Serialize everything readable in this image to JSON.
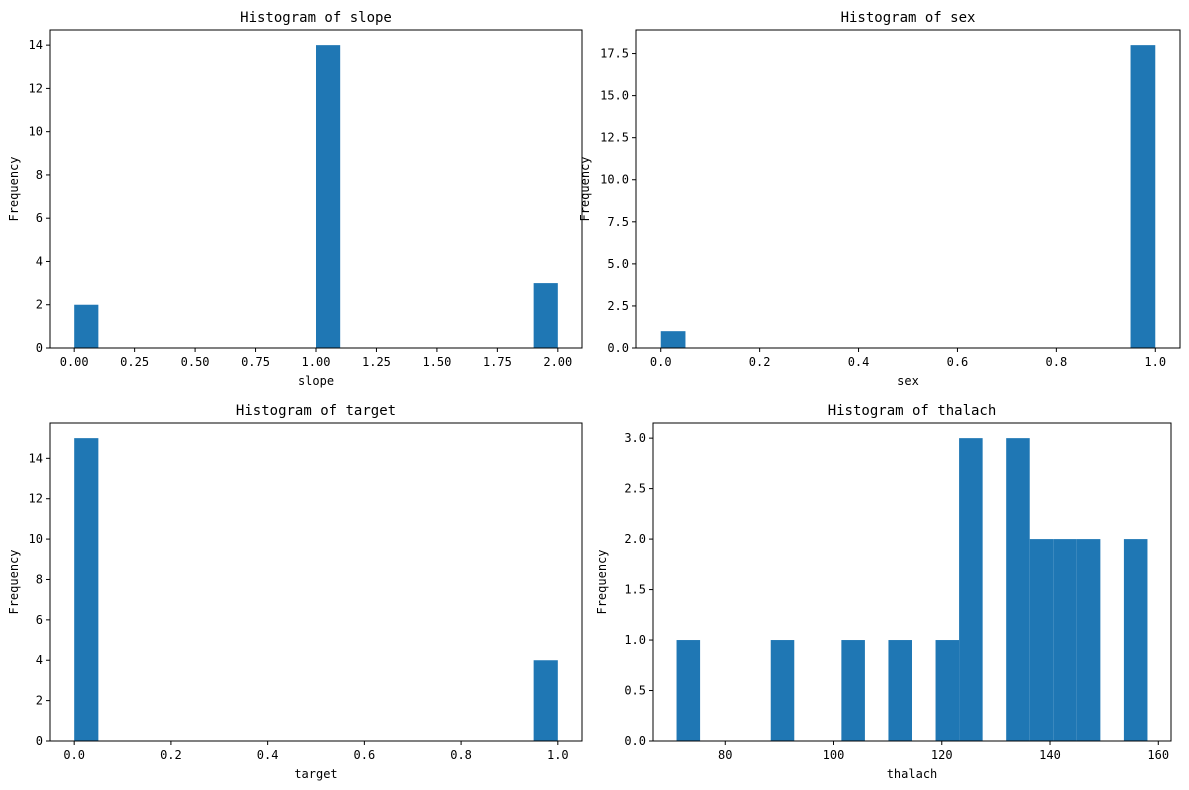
{
  "chart_data": [
    {
      "type": "bar",
      "title": "Histogram of slope",
      "xlabel": "slope",
      "ylabel": "Frequency",
      "bar_color": "#1f77b4",
      "grid": false,
      "xlim": [
        -0.1,
        2.1
      ],
      "ylim": [
        0,
        14.7
      ],
      "xticks": [
        0.0,
        0.25,
        0.5,
        0.75,
        1.0,
        1.25,
        1.5,
        1.75,
        2.0
      ],
      "xtick_labels": [
        "0.00",
        "0.25",
        "0.50",
        "0.75",
        "1.00",
        "1.25",
        "1.50",
        "1.75",
        "2.00"
      ],
      "yticks": [
        0,
        2,
        4,
        6,
        8,
        10,
        12,
        14
      ],
      "ytick_labels": [
        "0",
        "2",
        "4",
        "6",
        "8",
        "10",
        "12",
        "14"
      ],
      "bins": [
        {
          "x0": 0.0,
          "x1": 0.1,
          "count": 2
        },
        {
          "x0": 1.0,
          "x1": 1.1,
          "count": 14
        },
        {
          "x0": 1.9,
          "x1": 2.0,
          "count": 3
        }
      ]
    },
    {
      "type": "bar",
      "title": "Histogram of sex",
      "xlabel": "sex",
      "ylabel": "Frequency",
      "bar_color": "#1f77b4",
      "grid": false,
      "xlim": [
        -0.05,
        1.05
      ],
      "ylim": [
        0,
        18.9
      ],
      "xticks": [
        0.0,
        0.2,
        0.4,
        0.6,
        0.8,
        1.0
      ],
      "xtick_labels": [
        "0.0",
        "0.2",
        "0.4",
        "0.6",
        "0.8",
        "1.0"
      ],
      "yticks": [
        0,
        2.5,
        5,
        7.5,
        10,
        12.5,
        15,
        17.5
      ],
      "ytick_labels": [
        "0.0",
        "2.5",
        "5.0",
        "7.5",
        "10.0",
        "12.5",
        "15.0",
        "17.5"
      ],
      "bins": [
        {
          "x0": 0.0,
          "x1": 0.05,
          "count": 1
        },
        {
          "x0": 0.95,
          "x1": 1.0,
          "count": 18
        }
      ]
    },
    {
      "type": "bar",
      "title": "Histogram of target",
      "xlabel": "target",
      "ylabel": "Frequency",
      "bar_color": "#1f77b4",
      "grid": false,
      "xlim": [
        -0.05,
        1.05
      ],
      "ylim": [
        0,
        15.75
      ],
      "xticks": [
        0.0,
        0.2,
        0.4,
        0.6,
        0.8,
        1.0
      ],
      "xtick_labels": [
        "0.0",
        "0.2",
        "0.4",
        "0.6",
        "0.8",
        "1.0"
      ],
      "yticks": [
        0,
        2,
        4,
        6,
        8,
        10,
        12,
        14
      ],
      "ytick_labels": [
        "0",
        "2",
        "4",
        "6",
        "8",
        "10",
        "12",
        "14"
      ],
      "bins": [
        {
          "x0": 0.0,
          "x1": 0.05,
          "count": 15
        },
        {
          "x0": 0.95,
          "x1": 1.0,
          "count": 4
        }
      ]
    },
    {
      "type": "bar",
      "title": "Histogram of thalach",
      "xlabel": "thalach",
      "ylabel": "Frequency",
      "bar_color": "#1f77b4",
      "grid": false,
      "xlim": [
        66.65,
        162.35
      ],
      "ylim": [
        0,
        3.15
      ],
      "xticks": [
        80,
        100,
        120,
        140,
        160
      ],
      "xtick_labels": [
        "80",
        "100",
        "120",
        "140",
        "160"
      ],
      "yticks": [
        0,
        0.5,
        1,
        1.5,
        2,
        2.5,
        3
      ],
      "ytick_labels": [
        "0.0",
        "0.5",
        "1.0",
        "1.5",
        "2.0",
        "2.5",
        "3.0"
      ],
      "bins": [
        {
          "x0": 71.0,
          "x1": 75.35,
          "count": 1
        },
        {
          "x0": 88.4,
          "x1": 92.75,
          "count": 1
        },
        {
          "x0": 101.45,
          "x1": 105.8,
          "count": 1
        },
        {
          "x0": 110.15,
          "x1": 114.5,
          "count": 1
        },
        {
          "x0": 118.85,
          "x1": 123.2,
          "count": 1
        },
        {
          "x0": 123.2,
          "x1": 127.55,
          "count": 3
        },
        {
          "x0": 131.9,
          "x1": 136.25,
          "count": 3
        },
        {
          "x0": 136.25,
          "x1": 140.6,
          "count": 2
        },
        {
          "x0": 140.6,
          "x1": 144.95,
          "count": 2
        },
        {
          "x0": 144.95,
          "x1": 149.3,
          "count": 2
        },
        {
          "x0": 153.65,
          "x1": 158.0,
          "count": 2
        }
      ]
    }
  ]
}
